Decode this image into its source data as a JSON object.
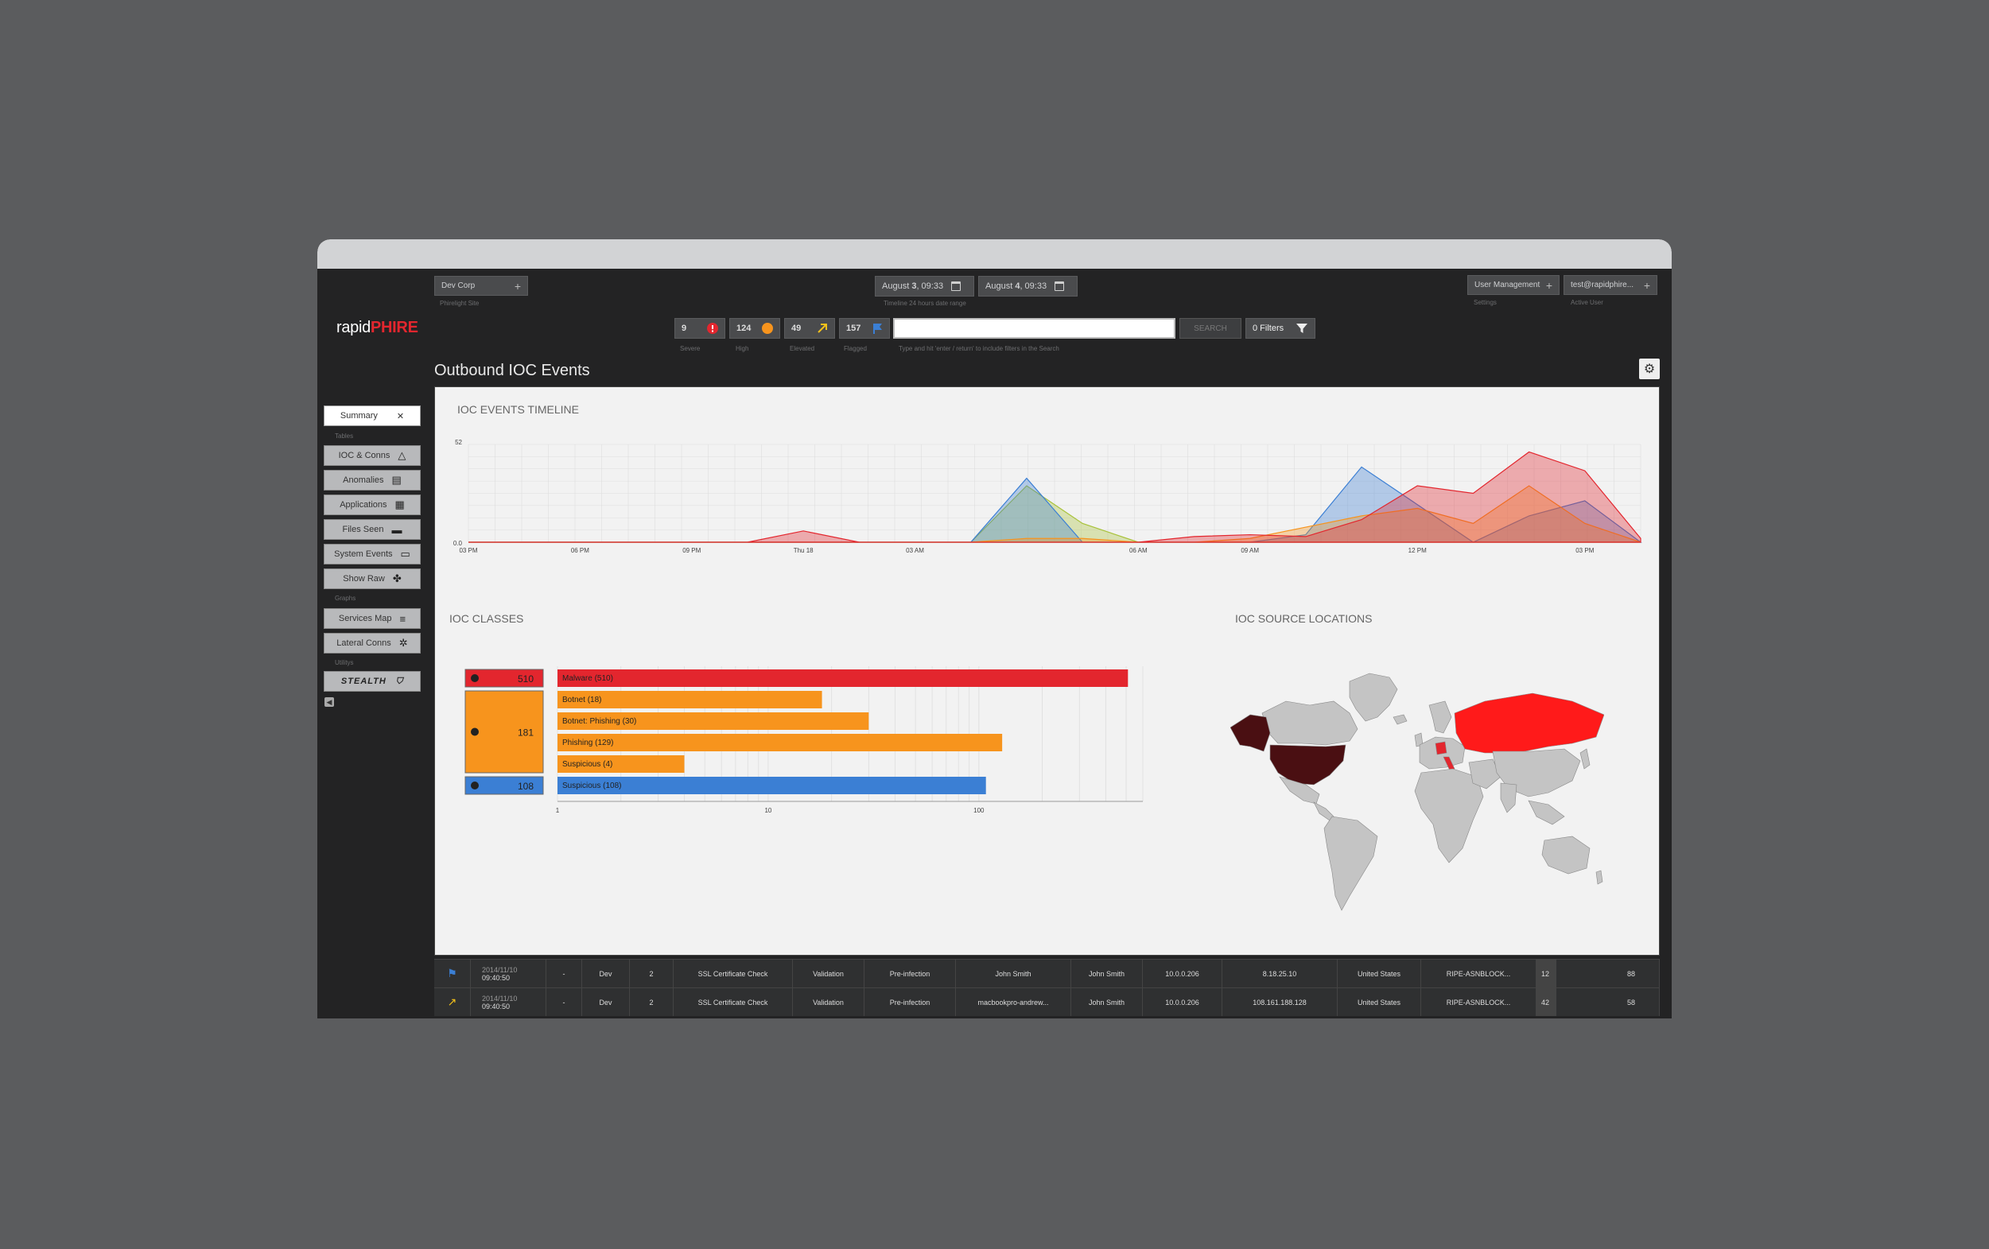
{
  "app": {
    "logo_light": "rapid",
    "logo_bold": "PHIRE"
  },
  "header": {
    "site_select": "Dev Corp",
    "site_caption": "Phirelight Site",
    "date_from_prefix": "August ",
    "date_from_day": "3",
    "date_from_time": ", 09:33",
    "date_to_prefix": "August ",
    "date_to_day": "4",
    "date_to_time": ", 09:33",
    "date_caption": "Timeline 24 hours date range",
    "user_mgmt": "User Management",
    "user_mgmt_caption": "Settings",
    "active_user": "test@rapidphire...",
    "active_user_caption": "Active User"
  },
  "severity": [
    {
      "count": "9",
      "label": "Severe",
      "icon": "alert-circle-icon",
      "color": "#e3262e"
    },
    {
      "count": "124",
      "label": "High",
      "icon": "bell-icon",
      "color": "#f7941d"
    },
    {
      "count": "49",
      "label": "Elevated",
      "icon": "arrow-up-right-icon",
      "color": "#f3c11a"
    },
    {
      "count": "157",
      "label": "Flagged",
      "icon": "flag-icon",
      "color": "#3b7fd4"
    }
  ],
  "search": {
    "hint": "Type and hit 'enter / return' to include filters in the Search",
    "button": "SEARCH",
    "filters": "0 Filters"
  },
  "page_title": "Outbound IOC Events",
  "sidebar": {
    "summary": "Summary",
    "section_tables": "Tables",
    "tables": [
      {
        "label": "IOC & Conns",
        "icon": "triangle-icon"
      },
      {
        "label": "Anomalies",
        "icon": "anomaly-icon"
      },
      {
        "label": "Applications",
        "icon": "grid-icon"
      },
      {
        "label": "Files Seen",
        "icon": "folder-icon"
      },
      {
        "label": "System Events",
        "icon": "terminal-icon"
      },
      {
        "label": "Show Raw",
        "icon": "puzzle-icon"
      }
    ],
    "section_graphs": "Graphs",
    "graphs": [
      {
        "label": "Services Map",
        "icon": "services-icon"
      },
      {
        "label": "Lateral Conns",
        "icon": "network-icon"
      }
    ],
    "section_utility": "Utilitys",
    "stealth": "STEALTH"
  },
  "timeline": {
    "title": "IOC EVENTS TIMELINE",
    "y_max_label": "52",
    "y_min_label": "0.0",
    "x_ticks": [
      "03 PM",
      "06 PM",
      "09 PM",
      "Thu 18",
      "03 AM",
      "06 AM",
      "09 AM",
      "12 PM",
      "03 PM"
    ]
  },
  "chart_data": {
    "type": "area",
    "title": "IOC EVENTS TIMELINE",
    "ylim": [
      0,
      52
    ],
    "x": [
      "03 PM",
      "",
      "06 PM",
      "",
      "09 PM",
      "",
      "Thu 18",
      "",
      "03 AM",
      "",
      "",
      "",
      "06 AM",
      "",
      "09 AM",
      "",
      "",
      "12 PM",
      "",
      "",
      "03 PM",
      ""
    ],
    "series": [
      {
        "color": "#e3262e",
        "values": [
          0,
          0,
          0,
          0,
          0,
          0,
          6,
          0,
          0,
          0,
          0,
          0,
          0,
          3,
          4,
          3,
          12,
          30,
          26,
          48,
          38,
          2
        ]
      },
      {
        "color": "#f7941d",
        "values": [
          0,
          0,
          0,
          0,
          0,
          0,
          0,
          0,
          0,
          0,
          2,
          2,
          0,
          0,
          2,
          8,
          14,
          18,
          10,
          30,
          10,
          0
        ]
      },
      {
        "color": "#3b7fd4",
        "values": [
          0,
          0,
          0,
          0,
          0,
          0,
          0,
          0,
          0,
          0,
          34,
          0,
          0,
          0,
          0,
          4,
          40,
          20,
          0,
          14,
          22,
          0
        ]
      },
      {
        "color": "#a8c23a",
        "values": [
          0,
          0,
          0,
          0,
          0,
          0,
          0,
          0,
          0,
          0,
          30,
          10,
          0,
          0,
          0,
          0,
          0,
          0,
          0,
          0,
          0,
          0
        ]
      }
    ]
  },
  "classes": {
    "title": "IOC CLASSES",
    "groups": [
      {
        "count": "510",
        "color": "#e3262e"
      },
      {
        "count": "181",
        "color": "#f7941d"
      },
      {
        "count": "108",
        "color": "#3b7fd4"
      }
    ],
    "bars": [
      {
        "label": "Malware (510)",
        "value": 510,
        "color": "#e3262e"
      },
      {
        "label": "Botnet (18)",
        "value": 18,
        "color": "#f7941d"
      },
      {
        "label": "Botnet: Phishing (30)",
        "value": 30,
        "color": "#f7941d"
      },
      {
        "label": "Phishing (129)",
        "value": 129,
        "color": "#f7941d"
      },
      {
        "label": "Suspicious (4)",
        "value": 4,
        "color": "#f7941d"
      },
      {
        "label": "Suspicious (108)",
        "value": 108,
        "color": "#3b7fd4"
      }
    ],
    "x_ticks": [
      "1",
      "10",
      "100"
    ]
  },
  "locations": {
    "title": "IOC SOURCE LOCATIONS"
  },
  "table": {
    "rows": [
      {
        "flag_icon": "flag-icon",
        "flag_color": "#3b7fd4",
        "date": "2014/11/10",
        "time": "09:40:50",
        "dash": "-",
        "site": "Dev",
        "num": "2",
        "name": "SSL Certificate Check",
        "type": "Validation",
        "stage": "Pre-infection",
        "host": "John Smith",
        "user": "John Smith",
        "src": "10.0.0.206",
        "dst": "8.18.25.10",
        "country": "United States",
        "asn": "RIPE-ASNBLOCK...",
        "a": "12",
        "b": "88"
      },
      {
        "flag_icon": "arrow-up-right-icon",
        "flag_color": "#f3c11a",
        "date": "2014/11/10",
        "time": "09:40:50",
        "dash": "-",
        "site": "Dev",
        "num": "2",
        "name": "SSL Certificate Check",
        "type": "Validation",
        "stage": "Pre-infection",
        "host": "macbookpro-andrew...",
        "user": "John Smith",
        "src": "10.0.0.206",
        "dst": "108.161.188.128",
        "country": "United States",
        "asn": "RIPE-ASNBLOCK...",
        "a": "42",
        "b": "58"
      }
    ]
  }
}
